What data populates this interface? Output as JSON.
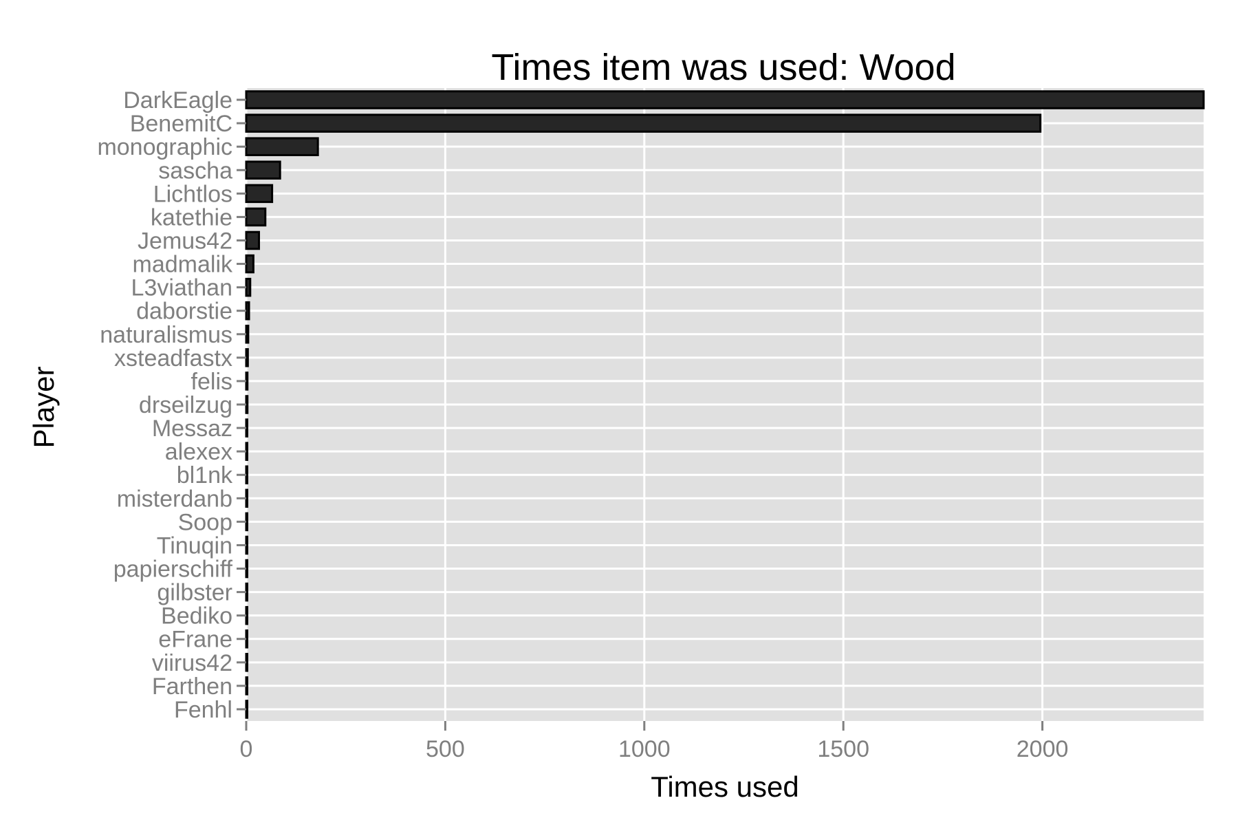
{
  "chart_data": {
    "type": "bar",
    "orientation": "horizontal",
    "title": "Times item was used: Wood",
    "xlabel": "Times used",
    "ylabel": "Player",
    "xlim": [
      0,
      2405
    ],
    "xticks": [
      0,
      500,
      1000,
      1500,
      2000
    ],
    "grid": true,
    "legend": "none",
    "bar_color": "#262626",
    "panel_color": "#e0e0e0",
    "categories": [
      "DarkEagle",
      "BenemitC",
      "monographic",
      "sascha",
      "Lichtlos",
      "katethie",
      "Jemus42",
      "madmalik",
      "L3viathan",
      "daborstie",
      "naturalismus",
      "xsteadfastx",
      "felis",
      "drseilzug",
      "Messaz",
      "alexex",
      "bl1nk",
      "misterdanb",
      "Soop",
      "Tinuqin",
      "papierschiff",
      "gilbster",
      "Bediko",
      "eFrane",
      "viirus42",
      "Farthen",
      "Fenhl"
    ],
    "values": [
      2405,
      1995,
      180,
      85,
      65,
      48,
      32,
      18,
      10,
      7,
      5,
      4,
      3,
      3,
      2,
      2,
      2,
      2,
      2,
      1,
      1,
      1,
      1,
      1,
      1,
      1,
      1
    ]
  }
}
